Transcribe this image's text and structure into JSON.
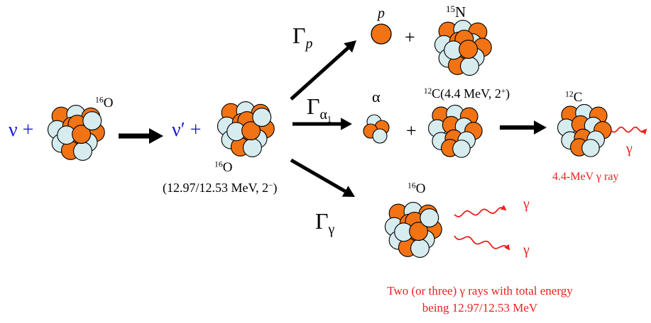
{
  "colors": {
    "proton": "#f27314",
    "neutron": "#d6ecee",
    "outline": "#000000",
    "neutrino_text": "#1a1adf",
    "gamma": "#e8211d",
    "arrow": "#000000"
  },
  "icons": [
    "nucleus-icon",
    "proton-icon",
    "alpha-icon",
    "wavy-gamma-arrow-icon",
    "reaction-arrow-icon"
  ],
  "initial": {
    "neutrino": "ν +",
    "nucleus": {
      "mass": "16",
      "symbol": "O"
    }
  },
  "excited": {
    "neutrino": "ν′ +",
    "nucleus": {
      "mass": "16",
      "symbol": "O"
    },
    "state_prefix": "(12.97/12.53 MeV, 2",
    "state_sup": "−",
    "state_suffix": ")"
  },
  "channels": {
    "proton": {
      "width": "Γ",
      "width_sub": "p",
      "particle": "p",
      "plus": "+",
      "product": {
        "mass": "15",
        "symbol": "N"
      }
    },
    "alpha": {
      "width": "Γ",
      "width_sub": "α",
      "width_subsub": "1",
      "particle": "α",
      "plus": "+",
      "product": {
        "mass": "12",
        "symbol": "C",
        "state_prefix": "(4.4 MeV, 2",
        "state_sup": "+",
        "state_suffix": ")"
      },
      "final": {
        "mass": "12",
        "symbol": "C"
      },
      "gamma": "γ",
      "gamma_label": "4.4-MeV γ ray"
    },
    "gamma": {
      "width": "Γ",
      "width_sub": "γ",
      "nucleus": {
        "mass": "16",
        "symbol": "O"
      },
      "gamma1": "γ",
      "gamma2": "γ",
      "caption_line1": "Two (or three) γ rays with total energy",
      "caption_line2": "being 12.97/12.53 MeV"
    }
  }
}
